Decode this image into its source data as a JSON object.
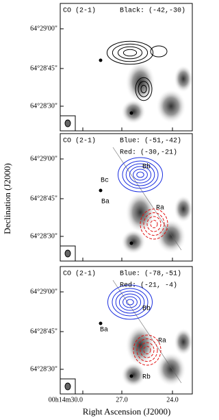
{
  "panels": [
    {
      "line": "CO (2-1)",
      "ranges": [
        "Black: (-42,-30)"
      ],
      "labels": []
    },
    {
      "line": "CO (2-1)",
      "ranges": [
        "Blue: (-51,-42)",
        "Red: (-30,-21)"
      ],
      "labels": [
        "Bb",
        "Bc",
        "Ba",
        "Ra"
      ]
    },
    {
      "line": "CO (2-1)",
      "ranges": [
        "Blue: (-78,-51)",
        "Red: (-21, -4)"
      ],
      "labels": [
        "Bb",
        "Ba",
        "Ra",
        "Rb"
      ]
    }
  ],
  "y_ticks": [
    "64°29'00\"",
    "64°28'45\"",
    "64°28'30\""
  ],
  "x_ticks": [
    "00h14m30.0",
    "27.0",
    "24.0"
  ],
  "y_axis_label": "Declination (J2000)",
  "x_axis_label": "Right Ascension (J2000)"
}
